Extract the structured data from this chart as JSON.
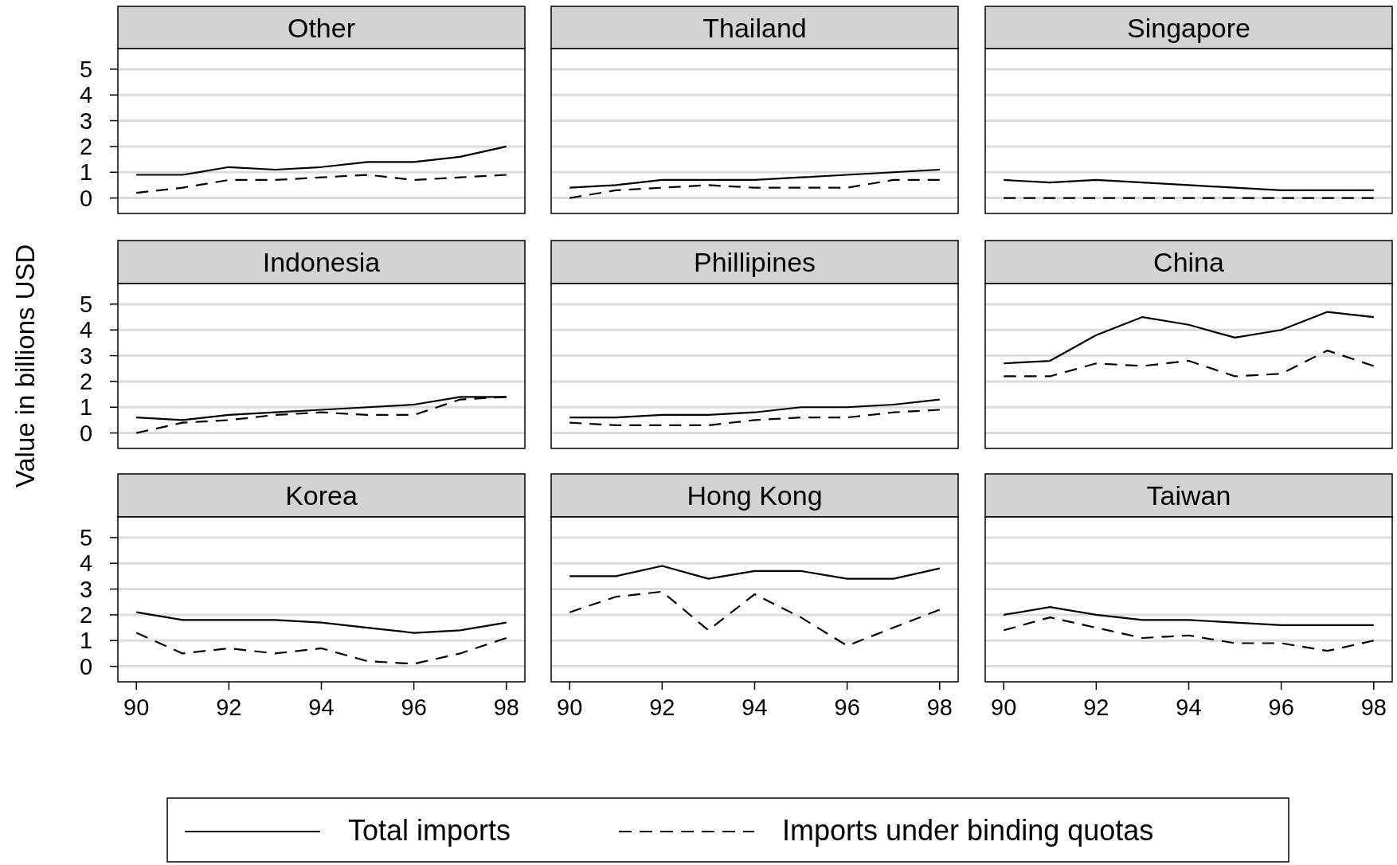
{
  "chart_data": [
    {
      "type": "line",
      "title": "Other",
      "x": [
        90,
        91,
        92,
        93,
        94,
        95,
        96,
        97,
        98
      ],
      "xlim": [
        89.6,
        98.4
      ],
      "ylim": [
        -0.6,
        5.8
      ],
      "yticks": [
        0,
        1,
        2,
        3,
        4,
        5
      ],
      "grid": "y",
      "tick_labels": "y",
      "legend": "bottom",
      "series": [
        {
          "name": "Total imports",
          "color": "#000000",
          "line_style": "solid",
          "values": [
            0.9,
            0.9,
            1.2,
            1.1,
            1.2,
            1.4,
            1.4,
            1.6,
            2.0
          ]
        },
        {
          "name": "Imports under binding quotas",
          "color": "#000000",
          "line_style": "dashed",
          "values": [
            0.2,
            0.4,
            0.7,
            0.7,
            0.8,
            0.9,
            0.7,
            0.8,
            0.9
          ]
        }
      ]
    },
    {
      "type": "line",
      "title": "Thailand",
      "x": [
        90,
        91,
        92,
        93,
        94,
        95,
        96,
        97,
        98
      ],
      "xlim": [
        89.6,
        98.4
      ],
      "ylim": [
        -0.6,
        5.8
      ],
      "yticks": [
        0,
        1,
        2,
        3,
        4,
        5
      ],
      "grid": "y",
      "tick_labels": false,
      "series": [
        {
          "color": "#000000",
          "line_style": "solid",
          "values": [
            0.4,
            0.5,
            0.7,
            0.7,
            0.7,
            0.8,
            0.9,
            1.0,
            1.1
          ]
        },
        {
          "color": "#000000",
          "line_style": "dashed",
          "values": [
            0,
            0.3,
            0.4,
            0.5,
            0.4,
            0.4,
            0.4,
            0.7,
            0.7
          ]
        }
      ]
    },
    {
      "type": "line",
      "title": "Singapore",
      "x": [
        90,
        91,
        92,
        93,
        94,
        95,
        96,
        97,
        98
      ],
      "xlim": [
        89.6,
        98.4
      ],
      "ylim": [
        -0.6,
        5.8
      ],
      "yticks": [
        0,
        1,
        2,
        3,
        4,
        5
      ],
      "grid": "y",
      "tick_labels": false,
      "series": [
        {
          "color": "#000000",
          "line_style": "solid",
          "values": [
            0.7,
            0.6,
            0.7,
            0.6,
            0.5,
            0.4,
            0.3,
            0.3,
            0.3
          ]
        },
        {
          "color": "#000000",
          "line_style": "dashed",
          "values": [
            0,
            0,
            0,
            0,
            0,
            0,
            0,
            0,
            0
          ]
        }
      ]
    },
    {
      "type": "line",
      "title": "Indonesia",
      "ylabel": "Value in billions USD",
      "x": [
        90,
        91,
        92,
        93,
        94,
        95,
        96,
        97,
        98
      ],
      "xlim": [
        89.6,
        98.4
      ],
      "ylim": [
        -0.6,
        5.8
      ],
      "yticks": [
        0,
        1,
        2,
        3,
        4,
        5
      ],
      "grid": "y",
      "tick_labels": "y",
      "series": [
        {
          "color": "#000000",
          "line_style": "solid",
          "values": [
            0.6,
            0.5,
            0.7,
            0.8,
            0.9,
            1.0,
            1.1,
            1.4,
            1.4
          ]
        },
        {
          "color": "#000000",
          "line_style": "dashed",
          "values": [
            0,
            0.4,
            0.5,
            0.7,
            0.8,
            0.7,
            0.7,
            1.3,
            1.4
          ]
        }
      ]
    },
    {
      "type": "line",
      "title": "Phillipines",
      "x": [
        90,
        91,
        92,
        93,
        94,
        95,
        96,
        97,
        98
      ],
      "xlim": [
        89.6,
        98.4
      ],
      "ylim": [
        -0.6,
        5.8
      ],
      "yticks": [
        0,
        1,
        2,
        3,
        4,
        5
      ],
      "grid": "y",
      "tick_labels": false,
      "series": [
        {
          "color": "#000000",
          "line_style": "solid",
          "values": [
            0.6,
            0.6,
            0.7,
            0.7,
            0.8,
            1.0,
            1.0,
            1.1,
            1.3
          ]
        },
        {
          "color": "#000000",
          "line_style": "dashed",
          "values": [
            0.4,
            0.3,
            0.3,
            0.3,
            0.5,
            0.6,
            0.6,
            0.8,
            0.9
          ]
        }
      ]
    },
    {
      "type": "line",
      "title": "China",
      "x": [
        90,
        91,
        92,
        93,
        94,
        95,
        96,
        97,
        98
      ],
      "xlim": [
        89.6,
        98.4
      ],
      "ylim": [
        -0.6,
        5.8
      ],
      "yticks": [
        0,
        1,
        2,
        3,
        4,
        5
      ],
      "grid": "y",
      "tick_labels": false,
      "series": [
        {
          "color": "#000000",
          "line_style": "solid",
          "values": [
            2.7,
            2.8,
            3.8,
            4.5,
            4.2,
            3.7,
            4.0,
            4.7,
            4.5
          ]
        },
        {
          "color": "#000000",
          "line_style": "dashed",
          "values": [
            2.2,
            2.2,
            2.7,
            2.6,
            2.8,
            2.2,
            2.3,
            3.2,
            2.6
          ]
        }
      ]
    },
    {
      "type": "line",
      "title": "Korea",
      "x": [
        90,
        91,
        92,
        93,
        94,
        95,
        96,
        97,
        98
      ],
      "xlim": [
        89.6,
        98.4
      ],
      "xticks": [
        90,
        92,
        94,
        96,
        98
      ],
      "ylim": [
        -0.6,
        5.8
      ],
      "yticks": [
        0,
        1,
        2,
        3,
        4,
        5
      ],
      "grid": "y",
      "series": [
        {
          "color": "#000000",
          "line_style": "solid",
          "values": [
            2.1,
            1.8,
            1.8,
            1.8,
            1.7,
            1.5,
            1.3,
            1.4,
            1.7
          ]
        },
        {
          "color": "#000000",
          "line_style": "dashed",
          "values": [
            1.3,
            0.5,
            0.7,
            0.5,
            0.7,
            0.2,
            0.1,
            0.5,
            1.1
          ]
        }
      ]
    },
    {
      "type": "line",
      "title": "Hong Kong",
      "x": [
        90,
        91,
        92,
        93,
        94,
        95,
        96,
        97,
        98
      ],
      "xlim": [
        89.6,
        98.4
      ],
      "xticks": [
        90,
        92,
        94,
        96,
        98
      ],
      "ylim": [
        -0.6,
        5.8
      ],
      "yticks": [
        0,
        1,
        2,
        3,
        4,
        5
      ],
      "grid": "y",
      "tick_labels": "x",
      "series": [
        {
          "color": "#000000",
          "line_style": "solid",
          "values": [
            3.5,
            3.5,
            3.9,
            3.4,
            3.7,
            3.7,
            3.4,
            3.4,
            3.8
          ]
        },
        {
          "color": "#000000",
          "line_style": "dashed",
          "values": [
            2.1,
            2.7,
            2.9,
            1.4,
            2.8,
            1.9,
            0.8,
            1.5,
            2.2
          ]
        }
      ]
    },
    {
      "type": "line",
      "title": "Taiwan",
      "x": [
        90,
        91,
        92,
        93,
        94,
        95,
        96,
        97,
        98
      ],
      "xlim": [
        89.6,
        98.4
      ],
      "xticks": [
        90,
        92,
        94,
        96,
        98
      ],
      "ylim": [
        -0.6,
        5.8
      ],
      "yticks": [
        0,
        1,
        2,
        3,
        4,
        5
      ],
      "grid": "y",
      "tick_labels": "x",
      "series": [
        {
          "color": "#000000",
          "line_style": "solid",
          "values": [
            2.0,
            2.3,
            2.0,
            1.8,
            1.8,
            1.7,
            1.6,
            1.6,
            1.6
          ]
        },
        {
          "color": "#000000",
          "line_style": "dashed",
          "values": [
            1.4,
            1.9,
            1.5,
            1.1,
            1.2,
            0.9,
            0.9,
            0.6,
            1.0
          ]
        }
      ]
    }
  ]
}
